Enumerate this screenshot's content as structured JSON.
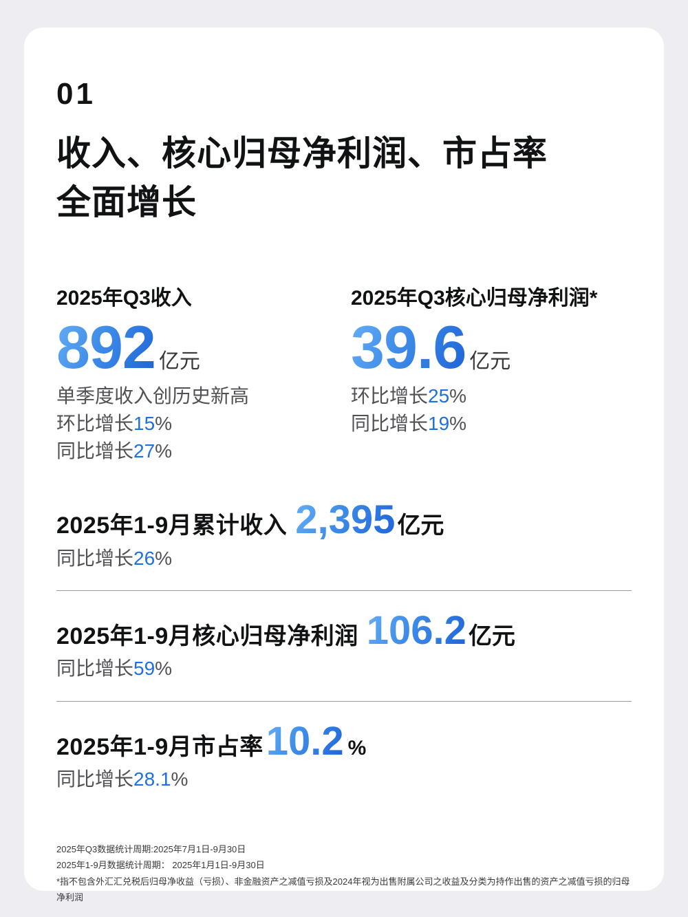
{
  "header": {
    "section_number": "01",
    "title_lines": [
      "收入、核心归母净利润、市占率",
      "全面增长"
    ]
  },
  "q3_revenue": {
    "label": "2025年Q3收入",
    "value": "892",
    "unit": "亿元",
    "note": "单季度收入创历史新高",
    "qoq": {
      "prefix": "环比增长",
      "value": "15",
      "suffix": "%"
    },
    "yoy": {
      "prefix": "同比增长",
      "value": "27",
      "suffix": "%"
    }
  },
  "q3_profit": {
    "label": "2025年Q3核心归母净利润*",
    "value": "39.6",
    "unit": "亿元",
    "qoq": {
      "prefix": "环比增长",
      "value": "25",
      "suffix": "%"
    },
    "yoy": {
      "prefix": "同比增长",
      "value": "19",
      "suffix": "%"
    }
  },
  "ytd_revenue": {
    "label": "2025年1-9月累计收入",
    "value": "2,395",
    "unit": "亿元",
    "yoy": {
      "prefix": "同比增长",
      "value": "26",
      "suffix": "%"
    }
  },
  "ytd_profit": {
    "label": "2025年1-9月核心归母净利润",
    "value": "106.2",
    "unit": "亿元",
    "yoy": {
      "prefix": "同比增长",
      "value": "59",
      "suffix": "%"
    }
  },
  "ytd_market_share": {
    "label": "2025年1-9月市占率",
    "value": "10.2",
    "unit": "%",
    "yoy": {
      "prefix": "同比增长",
      "value": "28.1",
      "suffix": "%"
    }
  },
  "footnotes": [
    "2025年Q3数据统计周期:2025年7月1日-9月30日",
    "2025年1-9月数据统计周期： 2025年1月1日-9月30日",
    "*指不包含外汇汇兑税后归母净收益（亏损）、非金融资产之减值亏损及2024年视为出售附属公司之收益及分类为持作出售的资产之减值亏损的归母净利润"
  ],
  "colors": {
    "accent_blue": "#1E70E0",
    "gradient_start": "#66AEF4",
    "gradient_end": "#1E63D8",
    "page_background": "#EEEEF2",
    "card_background": "#FFFFFF"
  }
}
